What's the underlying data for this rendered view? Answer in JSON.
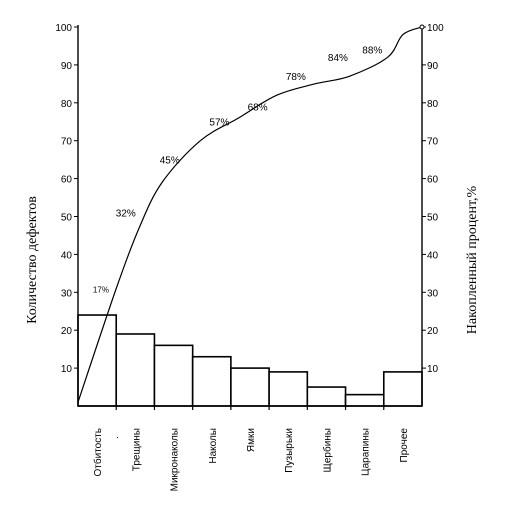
{
  "chart_data": {
    "type": "bar",
    "ylabel_left": "Количество дефектов",
    "ylabel_right": "Накопленный процент,%",
    "ylim": [
      0,
      100
    ],
    "y_ticks_left": [
      10,
      20,
      30,
      40,
      50,
      60,
      70,
      80,
      90,
      100
    ],
    "y_ticks_right": [
      10,
      20,
      30,
      40,
      50,
      60,
      70,
      80,
      90,
      100
    ],
    "categories": [
      "Отбитость",
      "Трещины",
      "Микронаколы",
      "Наколы",
      "Ямки",
      "Пузырьки",
      "Щербины",
      "Царапины",
      "Прочее"
    ],
    "values": [
      24,
      19,
      16,
      13,
      10,
      9,
      5,
      3,
      9
    ],
    "cumulative_labels": [
      "17%",
      "32%",
      "45%",
      "57%",
      "68%",
      "78%",
      "84%",
      "88%"
    ],
    "cumulative_curve": [
      {
        "x": 0,
        "y": 1
      },
      {
        "x": 1,
        "y": 31
      },
      {
        "x": 1.6,
        "y": 47
      },
      {
        "x": 2.2,
        "y": 59
      },
      {
        "x": 3.2,
        "y": 70
      },
      {
        "x": 4.2,
        "y": 76
      },
      {
        "x": 5.2,
        "y": 82
      },
      {
        "x": 6.2,
        "y": 85
      },
      {
        "x": 7.1,
        "y": 87
      },
      {
        "x": 8.1,
        "y": 92
      },
      {
        "x": 8.5,
        "y": 98
      },
      {
        "x": 9,
        "y": 100
      }
    ],
    "extra_marks": [
      "."
    ]
  }
}
